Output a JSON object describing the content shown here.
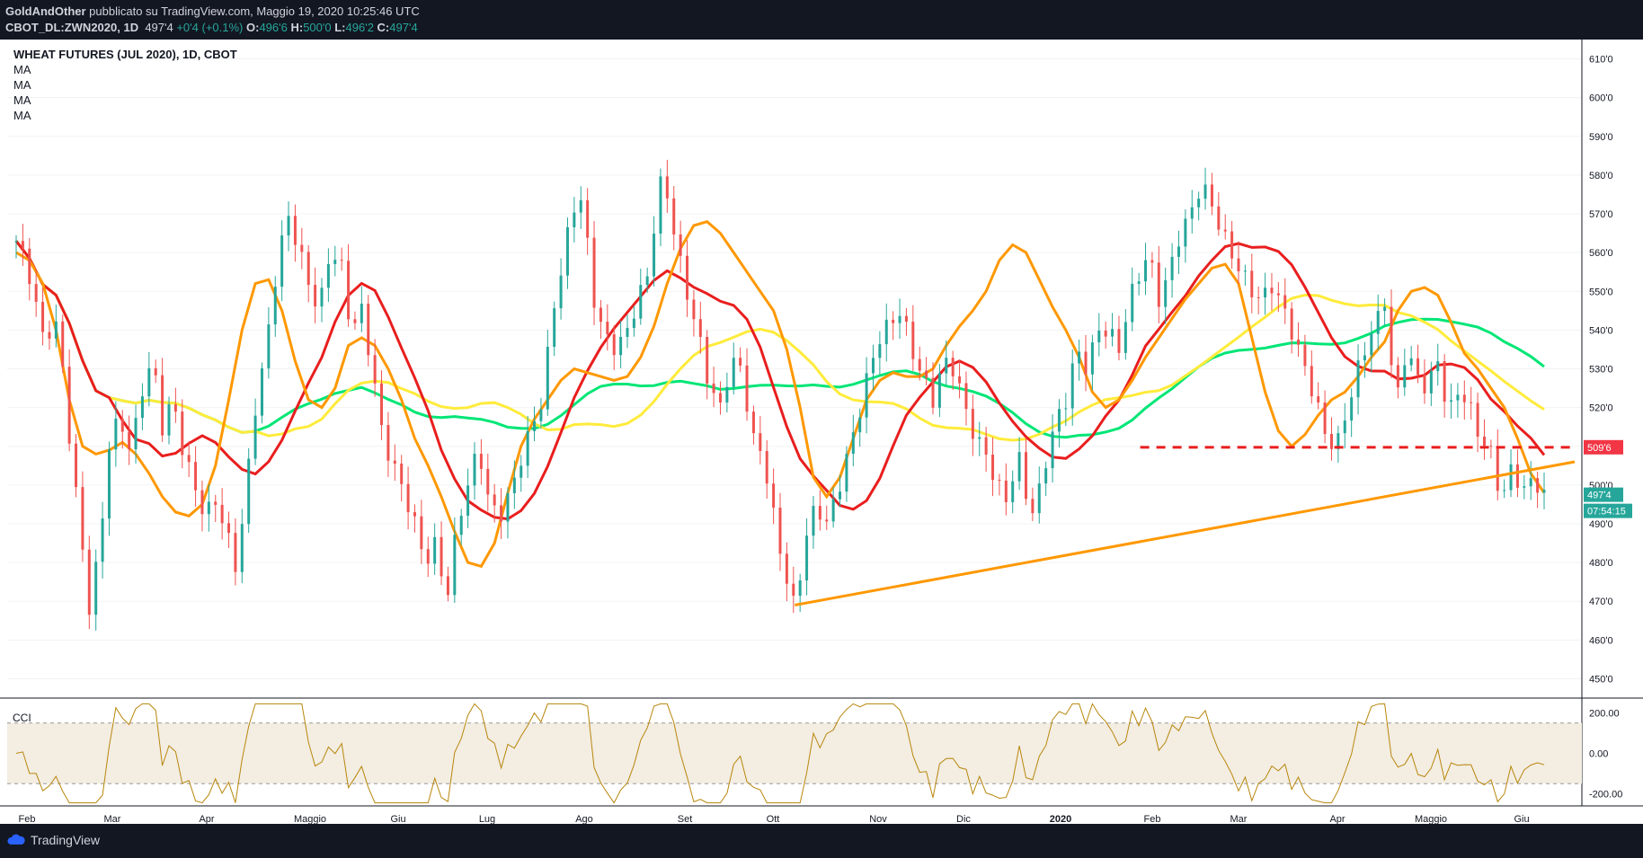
{
  "header": {
    "author": "GoldAndOther",
    "published_text": "pubblicato su TradingView.com, Maggio 19, 2020 10:25:46 UTC",
    "symbol": "CBOT_DL:ZWN2020, 1D",
    "last": "497ʹ4",
    "change": "+0ʹ4 (+0.1%)",
    "o_label": "O:",
    "o_value": "496ʹ6",
    "h_label": "H:",
    "h_value": "500ʹ0",
    "l_label": "L:",
    "l_value": "496ʹ2",
    "c_label": "C:",
    "c_value": "497ʹ4"
  },
  "legend": {
    "title": "WHEAT FUTURES (JUL 2020), 1D, CBOT",
    "ma_labels": [
      "MA",
      "MA",
      "MA",
      "MA"
    ]
  },
  "cci_label": "CCI",
  "footer": {
    "brand": "TradingView"
  },
  "colors": {
    "up": "#26a69a",
    "down": "#ef5350",
    "ma_fast": "#ff9800",
    "ma_mid": "#e91e1e",
    "ma_slow": "#00e676",
    "ma_yellow": "#ffeb3b",
    "trendline": "#ff9800",
    "support": "#e91e1e",
    "cci_line": "#b8860b",
    "cci_band": "#f3ede2"
  },
  "chart_data": {
    "type": "candlestick",
    "price_axis": {
      "min": 445,
      "max": 615,
      "ticks": [
        "610ʹ0",
        "600ʹ0",
        "590ʹ0",
        "580ʹ0",
        "570ʹ0",
        "560ʹ0",
        "550ʹ0",
        "540ʹ0",
        "530ʹ0",
        "520ʹ0",
        "510ʹ0",
        "500ʹ0",
        "490ʹ0",
        "480ʹ0",
        "470ʹ0",
        "460ʹ0",
        "450ʹ0"
      ],
      "tick_values": [
        610,
        600,
        590,
        580,
        570,
        560,
        550,
        540,
        530,
        520,
        510,
        500,
        490,
        480,
        470,
        460,
        450
      ]
    },
    "time_axis": [
      "Feb",
      "Mar",
      "Apr",
      "Maggio",
      "Giu",
      "Lug",
      "Ago",
      "Set",
      "Ott",
      "Nov",
      "Dic",
      "2020",
      "Feb",
      "Mar",
      "Apr",
      "Maggio",
      "Giu"
    ],
    "time_axis_bold": "2020",
    "price_labels": {
      "support": {
        "value": 509.75,
        "text": "509ʹ6"
      },
      "last": {
        "value": 497.5,
        "text": "497ʹ4"
      },
      "countdown": "07:54:15"
    },
    "support_level": 509.75,
    "trendline": {
      "start": {
        "x": "Set",
        "y": 469
      },
      "end_y": 506
    },
    "close_path": [
      [
        0,
        563
      ],
      [
        8,
        557
      ],
      [
        16,
        545
      ],
      [
        22,
        535
      ],
      [
        28,
        545
      ],
      [
        36,
        528
      ],
      [
        42,
        505
      ],
      [
        48,
        490
      ],
      [
        55,
        468
      ],
      [
        62,
        482
      ],
      [
        70,
        510
      ],
      [
        78,
        518
      ],
      [
        86,
        508
      ],
      [
        95,
        525
      ],
      [
        103,
        532
      ],
      [
        110,
        515
      ],
      [
        118,
        522
      ],
      [
        126,
        508
      ],
      [
        134,
        500
      ],
      [
        142,
        492
      ],
      [
        150,
        496
      ],
      [
        158,
        488
      ],
      [
        166,
        478
      ],
      [
        172,
        496
      ],
      [
        180,
        520
      ],
      [
        188,
        535
      ],
      [
        196,
        556
      ],
      [
        204,
        570
      ],
      [
        212,
        562
      ],
      [
        220,
        552
      ],
      [
        228,
        545
      ],
      [
        236,
        560
      ],
      [
        244,
        558
      ],
      [
        252,
        540
      ],
      [
        260,
        545
      ],
      [
        268,
        530
      ],
      [
        276,
        512
      ],
      [
        284,
        505
      ],
      [
        292,
        498
      ],
      [
        300,
        490
      ],
      [
        308,
        480
      ],
      [
        316,
        485
      ],
      [
        324,
        470
      ],
      [
        332,
        490
      ],
      [
        340,
        500
      ],
      [
        348,
        510
      ],
      [
        356,
        495
      ],
      [
        364,
        492
      ],
      [
        372,
        498
      ],
      [
        380,
        507
      ],
      [
        388,
        515
      ],
      [
        396,
        522
      ],
      [
        404,
        545
      ],
      [
        410,
        555
      ],
      [
        418,
        570
      ],
      [
        424,
        576
      ],
      [
        430,
        562
      ],
      [
        436,
        545
      ],
      [
        444,
        538
      ],
      [
        452,
        535
      ],
      [
        460,
        540
      ],
      [
        468,
        548
      ],
      [
        476,
        555
      ],
      [
        484,
        578
      ],
      [
        490,
        575
      ],
      [
        498,
        560
      ],
      [
        506,
        548
      ],
      [
        514,
        538
      ],
      [
        522,
        525
      ],
      [
        530,
        520
      ],
      [
        538,
        532
      ],
      [
        546,
        530
      ],
      [
        554,
        512
      ],
      [
        562,
        508
      ],
      [
        570,
        492
      ],
      [
        578,
        478
      ],
      [
        586,
        468
      ],
      [
        594,
        486
      ],
      [
        602,
        495
      ],
      [
        610,
        490
      ],
      [
        618,
        498
      ],
      [
        626,
        508
      ],
      [
        634,
        518
      ],
      [
        642,
        530
      ],
      [
        650,
        538
      ],
      [
        658,
        542
      ],
      [
        666,
        545
      ],
      [
        674,
        535
      ],
      [
        682,
        528
      ],
      [
        690,
        522
      ],
      [
        698,
        532
      ],
      [
        706,
        530
      ],
      [
        714,
        520
      ],
      [
        722,
        512
      ],
      [
        730,
        508
      ],
      [
        738,
        500
      ],
      [
        746,
        496
      ],
      [
        754,
        508
      ],
      [
        760,
        498
      ],
      [
        766,
        492
      ],
      [
        774,
        505
      ],
      [
        782,
        516
      ],
      [
        790,
        522
      ],
      [
        798,
        535
      ],
      [
        806,
        530
      ],
      [
        814,
        540
      ],
      [
        822,
        540
      ],
      [
        830,
        535
      ],
      [
        838,
        548
      ],
      [
        846,
        555
      ],
      [
        852,
        560
      ],
      [
        860,
        548
      ],
      [
        868,
        555
      ],
      [
        876,
        565
      ],
      [
        884,
        570
      ],
      [
        892,
        578
      ],
      [
        900,
        572
      ],
      [
        908,
        565
      ],
      [
        914,
        560
      ],
      [
        922,
        555
      ],
      [
        930,
        550
      ],
      [
        938,
        548
      ],
      [
        946,
        552
      ],
      [
        954,
        545
      ],
      [
        962,
        538
      ],
      [
        970,
        530
      ],
      [
        978,
        522
      ],
      [
        986,
        512
      ],
      [
        994,
        510
      ],
      [
        1002,
        520
      ],
      [
        1010,
        530
      ],
      [
        1018,
        538
      ],
      [
        1024,
        542
      ],
      [
        1030,
        548
      ],
      [
        1038,
        520
      ],
      [
        1046,
        535
      ],
      [
        1054,
        528
      ],
      [
        1062,
        525
      ],
      [
        1070,
        532
      ],
      [
        1078,
        518
      ],
      [
        1086,
        525
      ],
      [
        1094,
        520
      ],
      [
        1102,
        512
      ],
      [
        1110,
        508
      ],
      [
        1118,
        496
      ],
      [
        1126,
        505
      ],
      [
        1134,
        498
      ],
      [
        1142,
        502
      ],
      [
        1150,
        497
      ]
    ],
    "ma_fast_path": [
      [
        0,
        560
      ],
      [
        10,
        558
      ],
      [
        20,
        552
      ],
      [
        30,
        540
      ],
      [
        40,
        522
      ],
      [
        50,
        510
      ],
      [
        60,
        508
      ],
      [
        70,
        509
      ],
      [
        80,
        511
      ],
      [
        90,
        508
      ],
      [
        100,
        503
      ],
      [
        110,
        497
      ],
      [
        120,
        493
      ],
      [
        130,
        492
      ],
      [
        140,
        495
      ],
      [
        150,
        505
      ],
      [
        160,
        522
      ],
      [
        170,
        540
      ],
      [
        180,
        552
      ],
      [
        190,
        553
      ],
      [
        200,
        545
      ],
      [
        210,
        532
      ],
      [
        220,
        522
      ],
      [
        230,
        520
      ],
      [
        240,
        525
      ],
      [
        250,
        536
      ],
      [
        260,
        538
      ],
      [
        270,
        536
      ],
      [
        280,
        530
      ],
      [
        290,
        522
      ],
      [
        300,
        512
      ],
      [
        310,
        505
      ],
      [
        320,
        497
      ],
      [
        330,
        488
      ],
      [
        340,
        480
      ],
      [
        350,
        479
      ],
      [
        360,
        485
      ],
      [
        370,
        498
      ],
      [
        380,
        510
      ],
      [
        390,
        517
      ],
      [
        400,
        522
      ],
      [
        410,
        527
      ],
      [
        420,
        530
      ],
      [
        430,
        529
      ],
      [
        440,
        528
      ],
      [
        450,
        527
      ],
      [
        460,
        528
      ],
      [
        470,
        533
      ],
      [
        480,
        541
      ],
      [
        490,
        552
      ],
      [
        500,
        561
      ],
      [
        510,
        567
      ],
      [
        520,
        568
      ],
      [
        530,
        565
      ],
      [
        540,
        560
      ],
      [
        550,
        555
      ],
      [
        560,
        550
      ],
      [
        570,
        545
      ],
      [
        580,
        535
      ],
      [
        590,
        520
      ],
      [
        600,
        502
      ],
      [
        610,
        497
      ],
      [
        620,
        502
      ],
      [
        630,
        512
      ],
      [
        640,
        522
      ],
      [
        650,
        527
      ],
      [
        660,
        529
      ],
      [
        670,
        528
      ],
      [
        680,
        528
      ],
      [
        690,
        530
      ],
      [
        700,
        536
      ],
      [
        710,
        541
      ],
      [
        720,
        545
      ],
      [
        730,
        550
      ],
      [
        740,
        558
      ],
      [
        750,
        562
      ],
      [
        760,
        560
      ],
      [
        770,
        553
      ],
      [
        780,
        546
      ],
      [
        790,
        540
      ],
      [
        800,
        533
      ],
      [
        810,
        524
      ],
      [
        820,
        520
      ],
      [
        830,
        522
      ],
      [
        840,
        527
      ],
      [
        850,
        533
      ],
      [
        860,
        538
      ],
      [
        870,
        543
      ],
      [
        880,
        548
      ],
      [
        890,
        552
      ],
      [
        900,
        556
      ],
      [
        910,
        557
      ],
      [
        920,
        552
      ],
      [
        930,
        538
      ],
      [
        940,
        524
      ],
      [
        950,
        514
      ],
      [
        960,
        510
      ],
      [
        970,
        513
      ],
      [
        980,
        518
      ],
      [
        990,
        522
      ],
      [
        1000,
        524
      ],
      [
        1010,
        528
      ],
      [
        1020,
        533
      ],
      [
        1030,
        537
      ],
      [
        1040,
        545
      ],
      [
        1050,
        550
      ],
      [
        1060,
        551
      ],
      [
        1070,
        549
      ],
      [
        1080,
        542
      ],
      [
        1090,
        534
      ],
      [
        1100,
        530
      ],
      [
        1110,
        525
      ],
      [
        1120,
        520
      ],
      [
        1130,
        512
      ],
      [
        1140,
        503
      ],
      [
        1150,
        498
      ]
    ],
    "cci": {
      "min": -260,
      "max": 260,
      "ticks": [
        "200.00",
        "0.00",
        "-200.00"
      ],
      "tick_values": [
        200,
        0,
        -200
      ],
      "band": [
        -150,
        150
      ]
    }
  }
}
